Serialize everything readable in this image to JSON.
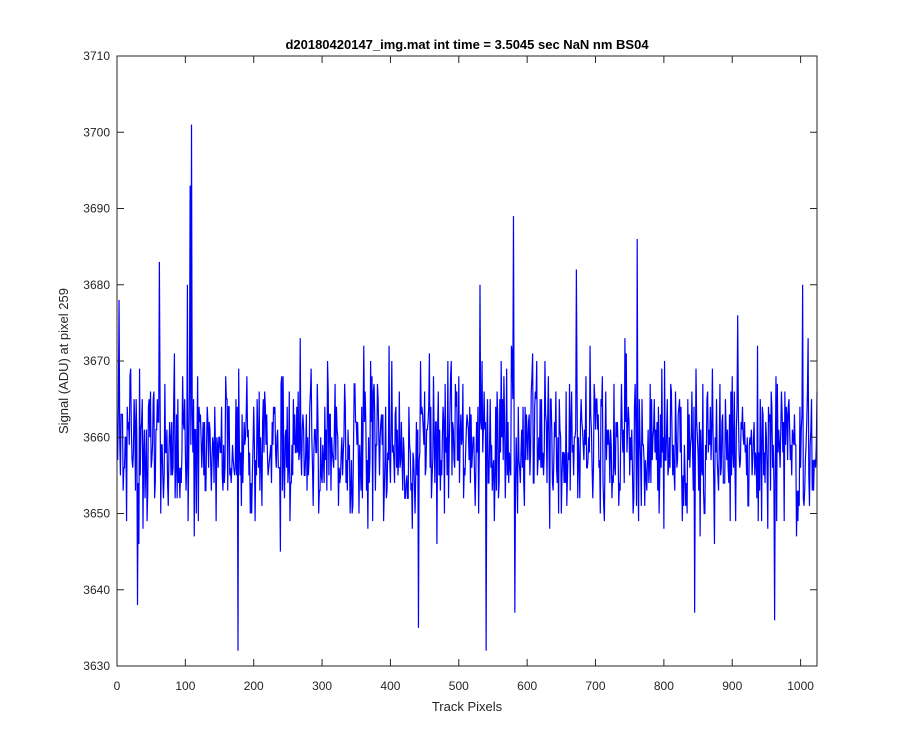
{
  "chart_data": {
    "type": "line",
    "title": "d20180420147_img.mat int time = 3.5045 sec  NaN nm BS04",
    "xlabel": "Track Pixels",
    "ylabel": "Signal (ADU) at pixel 259",
    "xlim": [
      0,
      1024
    ],
    "ylim": [
      3630,
      3710
    ],
    "xticks": [
      0,
      100,
      200,
      300,
      400,
      500,
      600,
      700,
      800,
      900,
      1000
    ],
    "yticks": [
      3630,
      3640,
      3650,
      3660,
      3670,
      3680,
      3690,
      3700,
      3710
    ],
    "grid": false,
    "legend": "none",
    "series": [
      {
        "color": "#0000ff",
        "noise": {
          "n_points": 1024,
          "x_start": 1,
          "baseline": 3659,
          "min": 3632,
          "max": 3701
        },
        "peaks": [
          {
            "x": 3,
            "y": 3678
          },
          {
            "x": 30,
            "y": 3638
          },
          {
            "x": 62,
            "y": 3683
          },
          {
            "x": 103,
            "y": 3680
          },
          {
            "x": 107,
            "y": 3693
          },
          {
            "x": 109,
            "y": 3701
          },
          {
            "x": 177,
            "y": 3632
          },
          {
            "x": 441,
            "y": 3635
          },
          {
            "x": 531,
            "y": 3680
          },
          {
            "x": 540,
            "y": 3632
          },
          {
            "x": 580,
            "y": 3689
          },
          {
            "x": 582,
            "y": 3637
          },
          {
            "x": 672,
            "y": 3682
          },
          {
            "x": 761,
            "y": 3686
          },
          {
            "x": 845,
            "y": 3637
          },
          {
            "x": 962,
            "y": 3636
          },
          {
            "x": 1003,
            "y": 3680
          }
        ]
      }
    ]
  }
}
